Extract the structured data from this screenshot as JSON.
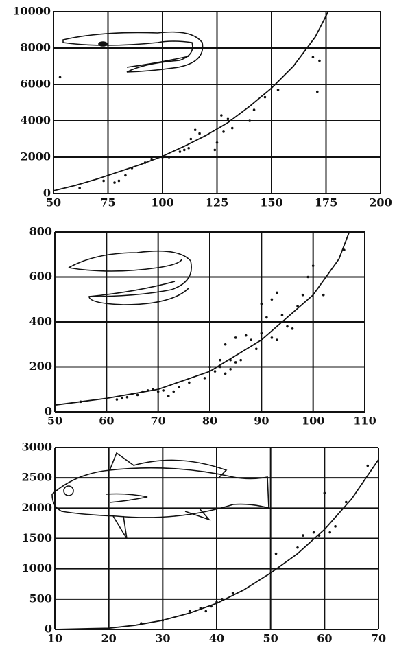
{
  "chart_data": [
    {
      "type": "scatter",
      "grid": true,
      "xlim": [
        50,
        200
      ],
      "xticks": [
        50,
        75,
        100,
        125,
        150,
        175,
        200
      ],
      "ylim": [
        0,
        10000
      ],
      "yticks": [
        0,
        2000,
        4000,
        6000,
        8000,
        10000
      ],
      "series": [
        {
          "style": "points",
          "color": "#111",
          "x": [
            53,
            62,
            73,
            78,
            80,
            83,
            86,
            92,
            95,
            100,
            103,
            108,
            110,
            112,
            113,
            115,
            117,
            124,
            125,
            127,
            128,
            130,
            132,
            140,
            142,
            147,
            153,
            169,
            171,
            172
          ],
          "values": [
            6400,
            300,
            700,
            600,
            700,
            1000,
            1400,
            1700,
            1900,
            2000,
            2000,
            2300,
            2400,
            2500,
            3000,
            3500,
            3300,
            2400,
            2800,
            4300,
            3400,
            4100,
            3600,
            4000,
            4600,
            5300,
            5700,
            7500,
            5600,
            7300
          ]
        },
        {
          "style": "line",
          "color": "#111",
          "x": [
            50,
            60,
            70,
            80,
            90,
            100,
            110,
            120,
            130,
            140,
            150,
            160,
            170,
            176
          ],
          "values": [
            150,
            450,
            800,
            1200,
            1600,
            2050,
            2600,
            3200,
            3900,
            4800,
            5800,
            7000,
            8600,
            10000
          ]
        }
      ]
    },
    {
      "type": "scatter",
      "grid": true,
      "xlim": [
        50,
        110
      ],
      "xticks": [
        50,
        60,
        70,
        80,
        90,
        100,
        110
      ],
      "ylim": [
        0,
        800
      ],
      "yticks": [
        0,
        200,
        400,
        600,
        800
      ],
      "series": [
        {
          "style": "points",
          "color": "#111",
          "x": [
            55,
            62,
            63,
            64,
            65,
            66,
            67,
            68,
            69,
            70,
            71,
            72,
            73,
            74,
            76,
            79,
            80,
            81,
            82,
            82,
            83,
            83,
            84,
            84,
            85,
            85,
            86,
            87,
            88,
            89,
            90,
            90,
            91,
            92,
            92,
            93,
            93,
            94,
            95,
            96,
            97,
            98,
            99,
            100,
            102,
            106
          ],
          "values": [
            45,
            55,
            60,
            65,
            80,
            75,
            90,
            95,
            100,
            90,
            95,
            70,
            90,
            110,
            130,
            150,
            200,
            180,
            200,
            230,
            170,
            300,
            190,
            230,
            330,
            220,
            230,
            340,
            320,
            280,
            480,
            350,
            420,
            330,
            500,
            530,
            320,
            430,
            380,
            370,
            470,
            520,
            600,
            650,
            520,
            720
          ]
        },
        {
          "style": "line",
          "color": "#111",
          "x": [
            50,
            60,
            70,
            80,
            90,
            100,
            105,
            107
          ],
          "values": [
            30,
            60,
            100,
            180,
            320,
            520,
            680,
            800
          ]
        }
      ]
    },
    {
      "type": "scatter",
      "grid": true,
      "xlim": [
        10,
        70
      ],
      "xticks": [
        10,
        20,
        30,
        40,
        50,
        60,
        70
      ],
      "ylim": [
        0,
        3000
      ],
      "yticks": [
        0,
        500,
        1000,
        1500,
        2000,
        2500,
        3000
      ],
      "series": [
        {
          "style": "points",
          "color": "#111",
          "x": [
            26,
            30,
            35,
            37,
            38,
            39,
            40,
            41,
            43,
            51,
            55,
            56,
            58,
            59,
            60,
            61,
            62,
            64,
            68
          ],
          "values": [
            100,
            150,
            300,
            350,
            300,
            380,
            450,
            500,
            600,
            1250,
            1350,
            1550,
            1600,
            1550,
            2250,
            1600,
            1700,
            2100,
            2700
          ]
        },
        {
          "style": "line",
          "color": "#111",
          "x": [
            10,
            20,
            25,
            30,
            35,
            40,
            45,
            50,
            55,
            60,
            65,
            70
          ],
          "values": [
            0,
            20,
            70,
            150,
            270,
            430,
            650,
            930,
            1250,
            1650,
            2150,
            2800
          ]
        }
      ]
    }
  ]
}
